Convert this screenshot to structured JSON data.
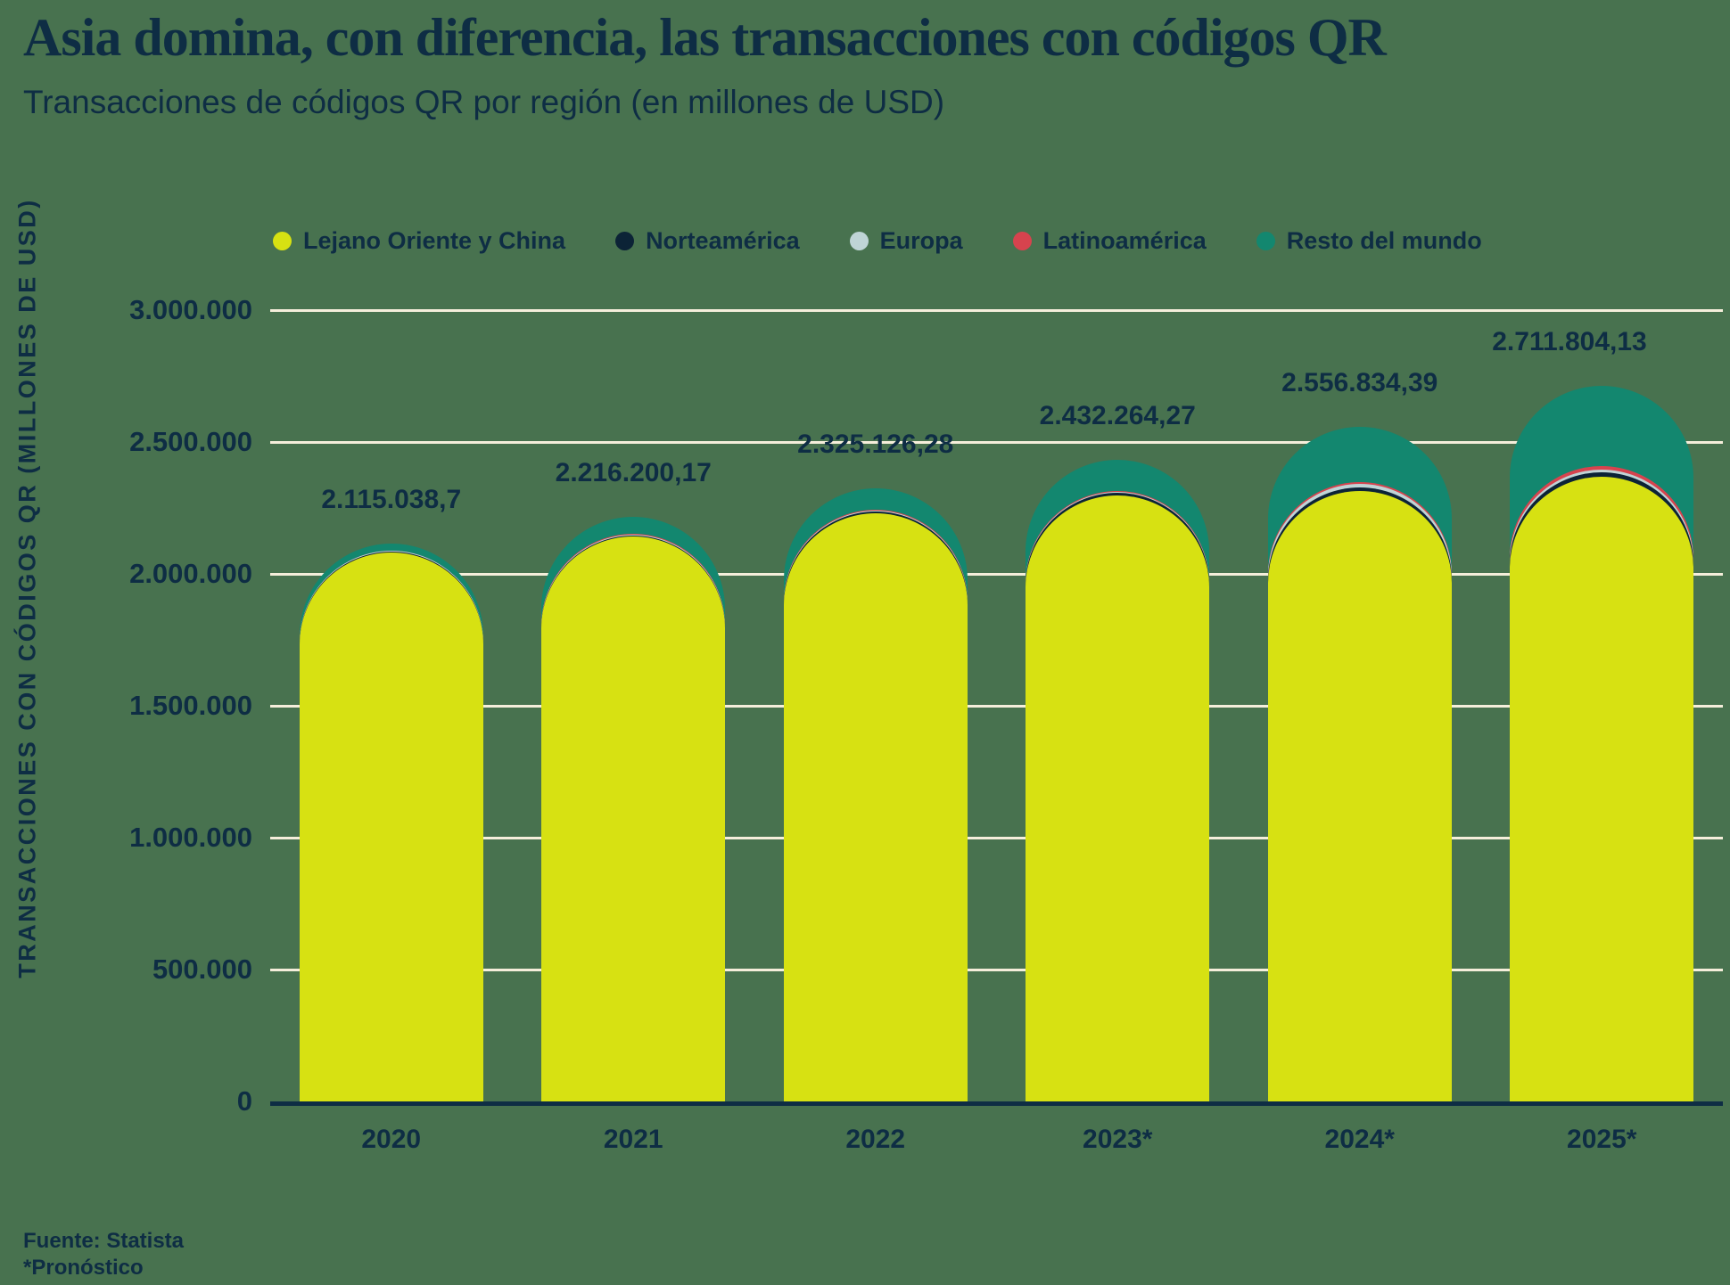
{
  "header": {
    "title": "Asia domina, con diferencia, las transacciones con códigos QR",
    "subtitle": "Transacciones de códigos QR por región (en millones de USD)"
  },
  "legend": [
    {
      "label": "Lejano Oriente y China",
      "color": "#d7e112"
    },
    {
      "label": "Norteamérica",
      "color": "#0c2336"
    },
    {
      "label": "Europa",
      "color": "#bfd4d6"
    },
    {
      "label": "Latinoamérica",
      "color": "#d7434e"
    },
    {
      "label": "Resto del mundo",
      "color": "#13876f"
    }
  ],
  "footer": {
    "source": "Fuente: Statista",
    "note": "*Pronóstico"
  },
  "colors": {
    "background": "#48724f",
    "text": "#0e2d44",
    "gridline": "#f5eedb",
    "axis": "#0e2d44"
  },
  "chart_data": {
    "type": "bar",
    "stacked": true,
    "rounded_top": true,
    "title": "Transacciones de códigos QR por región (en millones de USD)",
    "xlabel": "",
    "ylabel": "TRANSACCIONES CON CÓDIGOS QR (MILLONES DE USD)",
    "categories": [
      "2020",
      "2021",
      "2022",
      "2023*",
      "2024*",
      "2025*"
    ],
    "series": [
      {
        "name": "Lejano Oriente y China",
        "color": "#d7e112",
        "values": [
          2081238.7,
          2141900.17,
          2230526.28,
          2297164.27,
          2313634.39,
          2367204.13
        ]
      },
      {
        "name": "Norteamérica",
        "color": "#0c2336",
        "values": [
          4000,
          5000,
          7000,
          10000,
          15000,
          18000
        ]
      },
      {
        "name": "Europa",
        "color": "#bfd4d6",
        "values": [
          2000,
          2500,
          3500,
          5000,
          12000,
          10000
        ]
      },
      {
        "name": "Latinoamérica",
        "color": "#d7434e",
        "values": [
          1300,
          1700,
          2500,
          3500,
          6000,
          12000
        ]
      },
      {
        "name": "Resto del mundo",
        "color": "#13876f",
        "values": [
          26500,
          65100,
          81600,
          116600,
          210200,
          304600
        ]
      }
    ],
    "totals": [
      2115038.7,
      2216200.17,
      2325126.28,
      2432264.27,
      2556834.39,
      2711804.13
    ],
    "total_labels": [
      "2.115.038,7",
      "2.216.200,17",
      "2.325.126,28",
      "2.432.264,27",
      "2.556.834,39",
      "2.711.804,13"
    ],
    "ylim": [
      0,
      3000000
    ],
    "yticks": [
      0,
      500000,
      1000000,
      1500000,
      2000000,
      2500000,
      3000000
    ],
    "ytick_labels": [
      "0",
      "500.000",
      "1.000.000",
      "1.500.000",
      "2.000.000",
      "2.500.000",
      "3.000.000"
    ],
    "grid": true,
    "legend_position": "top"
  }
}
